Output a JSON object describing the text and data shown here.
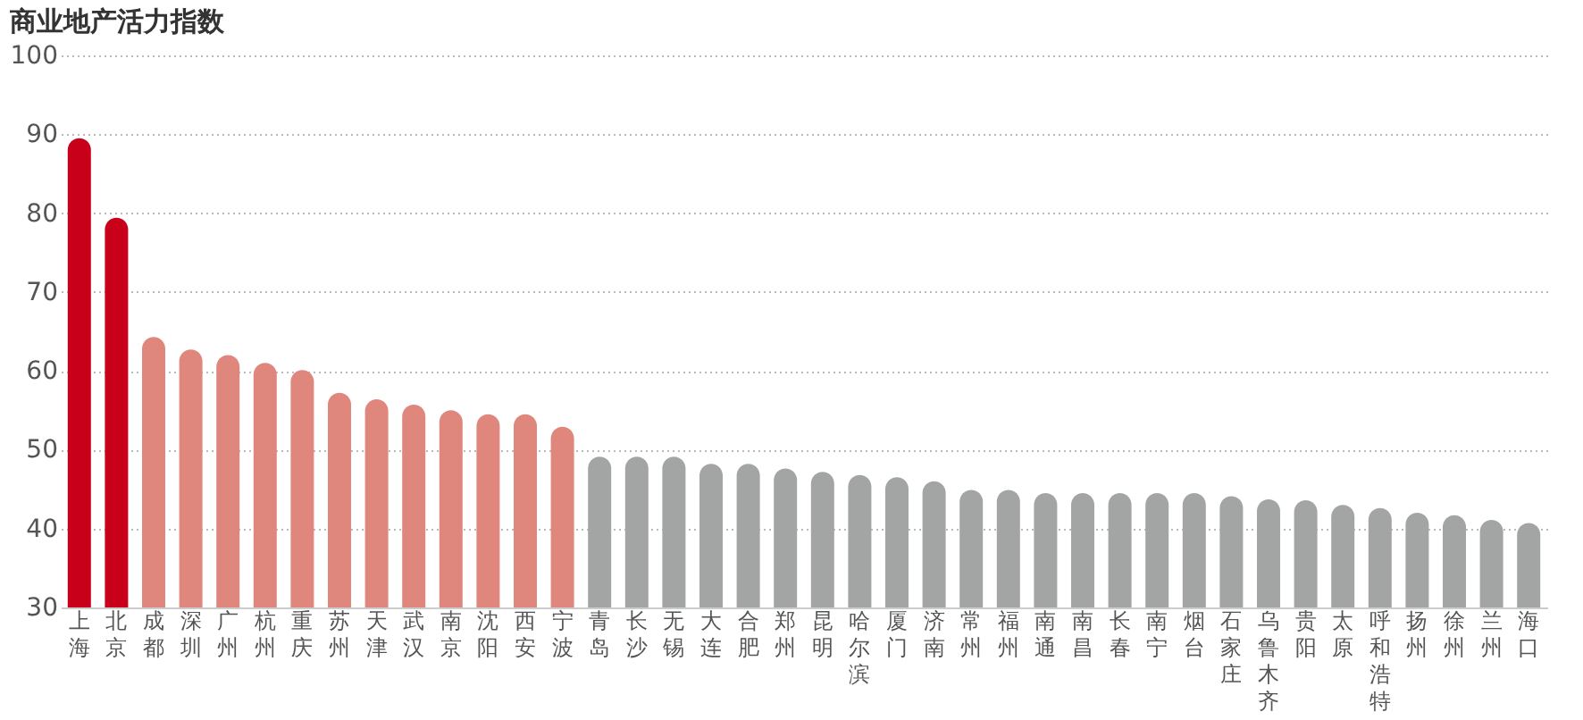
{
  "chart_data": {
    "type": "bar",
    "title": "商业地产活力指数",
    "categories": [
      "上海",
      "北京",
      "成都",
      "深圳",
      "广州",
      "杭州",
      "重庆",
      "苏州",
      "天津",
      "武汉",
      "南京",
      "沈阳",
      "西安",
      "宁波",
      "青岛",
      "长沙",
      "无锡",
      "大连",
      "合肥",
      "郑州",
      "昆明",
      "哈尔滨",
      "厦门",
      "济南",
      "常州",
      "福州",
      "南通",
      "南昌",
      "长春",
      "南宁",
      "烟台",
      "石家庄",
      "乌鲁木齐",
      "贵阳",
      "太原",
      "呼和浩特",
      "扬州",
      "徐州",
      "兰州",
      "海口"
    ],
    "values": [
      89.5,
      79.4,
      64.3,
      62.7,
      62.0,
      61.0,
      60.1,
      57.2,
      56.4,
      55.7,
      55.0,
      54.5,
      54.5,
      52.9,
      49.1,
      49.1,
      49.1,
      48.2,
      48.2,
      47.6,
      47.2,
      46.8,
      46.5,
      46.0,
      44.9,
      44.9,
      44.5,
      44.5,
      44.5,
      44.5,
      44.5,
      44.1,
      43.7,
      43.6,
      43.0,
      42.6,
      42.0,
      41.7,
      41.1,
      40.7
    ],
    "colors": [
      "#c8001a",
      "#c8001a",
      "#e0877d",
      "#e0877d",
      "#e0877d",
      "#e0877d",
      "#e0877d",
      "#e0877d",
      "#e0877d",
      "#e0877d",
      "#e0877d",
      "#e0877d",
      "#e0877d",
      "#e0877d",
      "#a3a5a4",
      "#a3a5a4",
      "#a3a5a4",
      "#a3a5a4",
      "#a3a5a4",
      "#a3a5a4",
      "#a3a5a4",
      "#a3a5a4",
      "#a3a5a4",
      "#a3a5a4",
      "#a3a5a4",
      "#a3a5a4",
      "#a3a5a4",
      "#a3a5a4",
      "#a3a5a4",
      "#a3a5a4",
      "#a3a5a4",
      "#a3a5a4",
      "#a3a5a4",
      "#a3a5a4",
      "#a3a5a4",
      "#a3a5a4",
      "#a3a5a4",
      "#a3a5a4",
      "#a3a5a4",
      "#a3a5a4"
    ],
    "ylim": [
      30,
      100
    ],
    "yticks": [
      30,
      40,
      50,
      60,
      70,
      80,
      90,
      100
    ],
    "grid": "y"
  }
}
